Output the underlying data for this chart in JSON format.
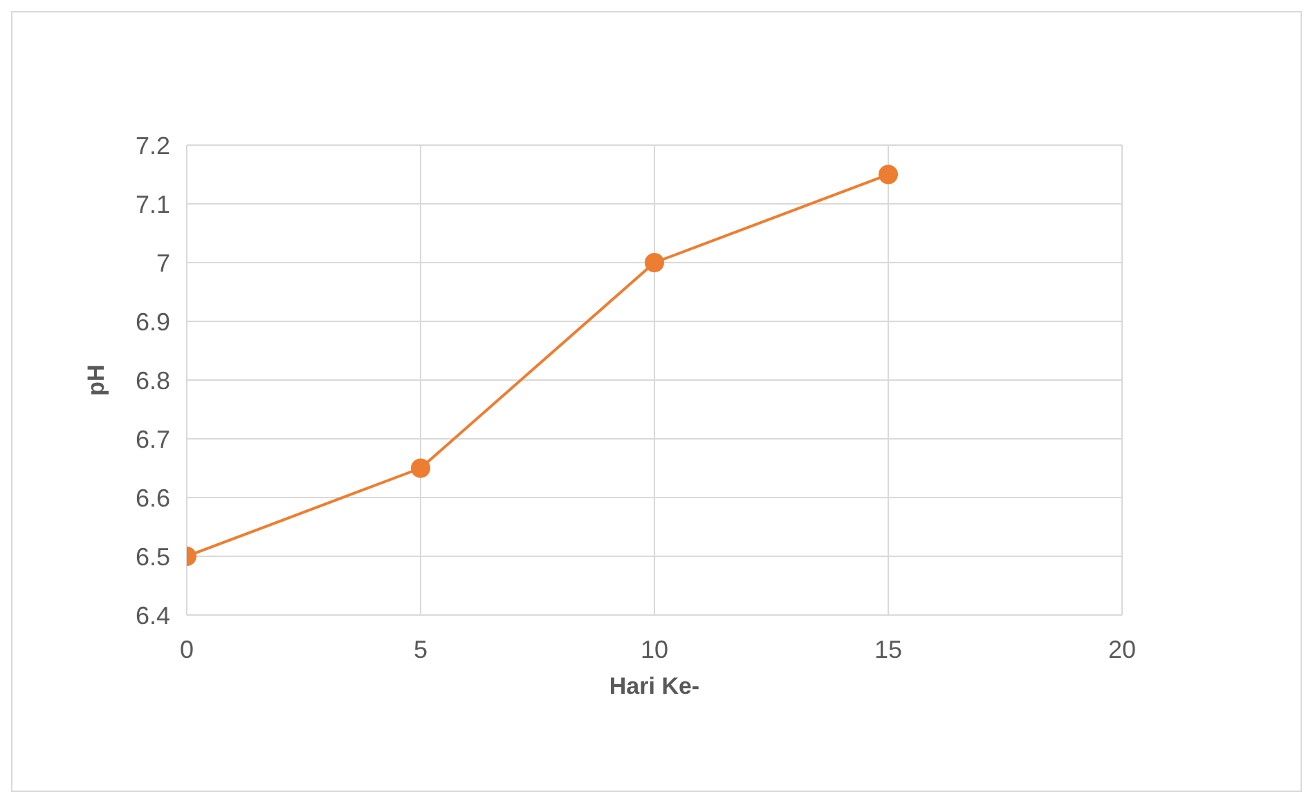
{
  "chart_data": {
    "type": "line",
    "xlabel": "Hari Ke-",
    "ylabel": "pH",
    "x": [
      0,
      5,
      10,
      15
    ],
    "series": [
      {
        "color": "#ed7d31",
        "values": [
          6.5,
          6.65,
          7,
          7.15
        ]
      }
    ],
    "xlim": [
      0,
      20
    ],
    "xticks": [
      0,
      5,
      10,
      15,
      20
    ],
    "ylim": [
      6.4,
      7.2
    ],
    "yticks": [
      6.4,
      6.5,
      6.6,
      6.7,
      6.8,
      6.9,
      7,
      7.1,
      7.2
    ],
    "grid": true,
    "marker": "circle",
    "line_style": "solid"
  }
}
